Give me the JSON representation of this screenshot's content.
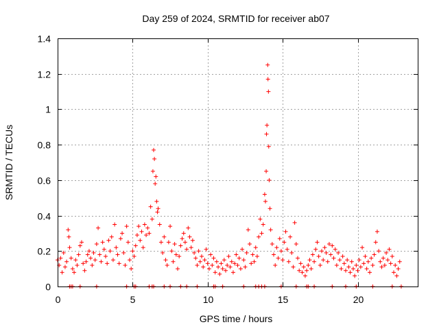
{
  "chart_data": {
    "type": "scatter",
    "title": "Day 259 of 2024, SRMTID for receiver ab07",
    "xlabel": "GPS time / hours",
    "ylabel": "SRMTID / TECUs",
    "xlim": [
      0,
      24
    ],
    "ylim": [
      0,
      1.4
    ],
    "xticks": [
      0,
      5,
      10,
      15,
      20
    ],
    "xtick_labels": [
      "0",
      "5",
      "10",
      "15",
      "20"
    ],
    "yticks": [
      0,
      0.2,
      0.4,
      0.6,
      0.8,
      1.0,
      1.2,
      1.4
    ],
    "ytick_labels": [
      "0",
      "0.2",
      "0.4",
      "0.6",
      "0.8",
      "1",
      "1.2",
      "1.4"
    ],
    "grid": true,
    "marker": "+",
    "color": "#ff0000",
    "series": [
      {
        "name": "ab07",
        "points": [
          [
            0.0,
            0.15
          ],
          [
            0.1,
            0.12
          ],
          [
            0.2,
            0.16
          ],
          [
            0.3,
            0.08
          ],
          [
            0.4,
            0.19
          ],
          [
            0.5,
            0.11
          ],
          [
            0.6,
            0.14
          ],
          [
            0.7,
            0.32
          ],
          [
            0.75,
            0.28
          ],
          [
            0.8,
            0.22
          ],
          [
            0.9,
            0.16
          ],
          [
            1.0,
            0.1
          ],
          [
            1.1,
            0.08
          ],
          [
            1.2,
            0.15
          ],
          [
            1.3,
            0.12
          ],
          [
            1.4,
            0.18
          ],
          [
            1.5,
            0.23
          ],
          [
            1.6,
            0.25
          ],
          [
            1.7,
            0.13
          ],
          [
            1.8,
            0.09
          ],
          [
            1.9,
            0.14
          ],
          [
            2.0,
            0.18
          ],
          [
            2.1,
            0.2
          ],
          [
            2.2,
            0.16
          ],
          [
            2.3,
            0.12
          ],
          [
            2.4,
            0.19
          ],
          [
            2.5,
            0.15
          ],
          [
            2.6,
            0.24
          ],
          [
            2.7,
            0.33
          ],
          [
            2.8,
            0.18
          ],
          [
            2.9,
            0.14
          ],
          [
            3.0,
            0.25
          ],
          [
            3.1,
            0.21
          ],
          [
            3.2,
            0.17
          ],
          [
            3.3,
            0.13
          ],
          [
            3.4,
            0.26
          ],
          [
            3.5,
            0.2
          ],
          [
            3.6,
            0.28
          ],
          [
            3.7,
            0.15
          ],
          [
            3.8,
            0.35
          ],
          [
            3.9,
            0.22
          ],
          [
            4.0,
            0.18
          ],
          [
            4.1,
            0.13
          ],
          [
            4.2,
            0.27
          ],
          [
            4.3,
            0.3
          ],
          [
            4.4,
            0.19
          ],
          [
            4.5,
            0.12
          ],
          [
            4.6,
            0.34
          ],
          [
            4.7,
            0.25
          ],
          [
            4.8,
            0.15
          ],
          [
            4.9,
            0.1
          ],
          [
            5.0,
            0.2
          ],
          [
            5.1,
            0.17
          ],
          [
            5.2,
            0.23
          ],
          [
            5.3,
            0.29
          ],
          [
            5.4,
            0.34
          ],
          [
            5.5,
            0.26
          ],
          [
            5.6,
            0.31
          ],
          [
            5.7,
            0.22
          ],
          [
            5.8,
            0.35
          ],
          [
            5.9,
            0.29
          ],
          [
            6.0,
            0.33
          ],
          [
            6.1,
            0.3
          ],
          [
            6.2,
            0.45
          ],
          [
            6.3,
            0.38
          ],
          [
            6.35,
            0.65
          ],
          [
            6.4,
            0.77
          ],
          [
            6.45,
            0.72
          ],
          [
            6.5,
            0.58
          ],
          [
            6.55,
            0.62
          ],
          [
            6.6,
            0.48
          ],
          [
            6.65,
            0.42
          ],
          [
            6.7,
            0.44
          ],
          [
            6.8,
            0.35
          ],
          [
            6.9,
            0.25
          ],
          [
            7.0,
            0.19
          ],
          [
            7.1,
            0.28
          ],
          [
            7.2,
            0.15
          ],
          [
            7.3,
            0.12
          ],
          [
            7.4,
            0.25
          ],
          [
            7.5,
            0.34
          ],
          [
            7.6,
            0.2
          ],
          [
            7.7,
            0.14
          ],
          [
            7.8,
            0.24
          ],
          [
            7.9,
            0.18
          ],
          [
            8.0,
            0.1
          ],
          [
            8.1,
            0.17
          ],
          [
            8.2,
            0.23
          ],
          [
            8.3,
            0.27
          ],
          [
            8.4,
            0.3
          ],
          [
            8.5,
            0.25
          ],
          [
            8.6,
            0.21
          ],
          [
            8.7,
            0.33
          ],
          [
            8.8,
            0.28
          ],
          [
            8.9,
            0.22
          ],
          [
            9.0,
            0.26
          ],
          [
            9.1,
            0.19
          ],
          [
            9.2,
            0.16
          ],
          [
            9.3,
            0.12
          ],
          [
            9.4,
            0.2
          ],
          [
            9.5,
            0.14
          ],
          [
            9.6,
            0.17
          ],
          [
            9.7,
            0.11
          ],
          [
            9.8,
            0.15
          ],
          [
            9.9,
            0.21
          ],
          [
            10.0,
            0.13
          ],
          [
            10.1,
            0.1
          ],
          [
            10.2,
            0.18
          ],
          [
            10.3,
            0.12
          ],
          [
            10.4,
            0.16
          ],
          [
            10.5,
            0.08
          ],
          [
            10.6,
            0.14
          ],
          [
            10.7,
            0.11
          ],
          [
            10.8,
            0.07
          ],
          [
            10.9,
            0.13
          ],
          [
            11.0,
            0.1
          ],
          [
            11.1,
            0.15
          ],
          [
            11.2,
            0.09
          ],
          [
            11.3,
            0.12
          ],
          [
            11.4,
            0.17
          ],
          [
            11.5,
            0.11
          ],
          [
            11.6,
            0.14
          ],
          [
            11.7,
            0.08
          ],
          [
            11.8,
            0.13
          ],
          [
            11.9,
            0.18
          ],
          [
            12.0,
            0.12
          ],
          [
            12.1,
            0.16
          ],
          [
            12.2,
            0.1
          ],
          [
            12.3,
            0.21
          ],
          [
            12.4,
            0.15
          ],
          [
            12.5,
            0.11
          ],
          [
            12.6,
            0.19
          ],
          [
            12.7,
            0.32
          ],
          [
            12.8,
            0.24
          ],
          [
            12.9,
            0.13
          ],
          [
            13.0,
            0.18
          ],
          [
            13.1,
            0.14
          ],
          [
            13.2,
            0.22
          ],
          [
            13.3,
            0.17
          ],
          [
            13.4,
            0.28
          ],
          [
            13.5,
            0.38
          ],
          [
            13.6,
            0.3
          ],
          [
            13.7,
            0.35
          ],
          [
            13.8,
            0.52
          ],
          [
            13.85,
            0.48
          ],
          [
            13.9,
            0.65
          ],
          [
            13.92,
            0.86
          ],
          [
            13.95,
            0.91
          ],
          [
            14.0,
            1.25
          ],
          [
            14.02,
            1.17
          ],
          [
            14.05,
            1.1
          ],
          [
            14.07,
            0.79
          ],
          [
            14.1,
            0.6
          ],
          [
            14.15,
            0.44
          ],
          [
            14.2,
            0.32
          ],
          [
            14.3,
            0.24
          ],
          [
            14.4,
            0.18
          ],
          [
            14.5,
            0.12
          ],
          [
            14.6,
            0.22
          ],
          [
            14.7,
            0.16
          ],
          [
            14.8,
            0.27
          ],
          [
            14.9,
            0.2
          ],
          [
            15.0,
            0.15
          ],
          [
            15.1,
            0.25
          ],
          [
            15.2,
            0.31
          ],
          [
            15.3,
            0.21
          ],
          [
            15.4,
            0.14
          ],
          [
            15.5,
            0.28
          ],
          [
            15.6,
            0.19
          ],
          [
            15.7,
            0.11
          ],
          [
            15.8,
            0.36
          ],
          [
            15.9,
            0.24
          ],
          [
            16.0,
            0.16
          ],
          [
            16.1,
            0.09
          ],
          [
            16.2,
            0.13
          ],
          [
            16.3,
            0.08
          ],
          [
            16.4,
            0.11
          ],
          [
            16.5,
            0.06
          ],
          [
            16.6,
            0.09
          ],
          [
            16.7,
            0.12
          ],
          [
            16.8,
            0.15
          ],
          [
            16.9,
            0.1
          ],
          [
            17.0,
            0.18
          ],
          [
            17.1,
            0.14
          ],
          [
            17.2,
            0.21
          ],
          [
            17.3,
            0.25
          ],
          [
            17.4,
            0.17
          ],
          [
            17.5,
            0.12
          ],
          [
            17.6,
            0.2
          ],
          [
            17.7,
            0.15
          ],
          [
            17.8,
            0.22
          ],
          [
            17.9,
            0.19
          ],
          [
            18.0,
            0.14
          ],
          [
            18.1,
            0.24
          ],
          [
            18.2,
            0.18
          ],
          [
            18.3,
            0.23
          ],
          [
            18.4,
            0.16
          ],
          [
            18.5,
            0.21
          ],
          [
            18.6,
            0.12
          ],
          [
            18.7,
            0.19
          ],
          [
            18.8,
            0.15
          ],
          [
            18.9,
            0.1
          ],
          [
            19.0,
            0.17
          ],
          [
            19.1,
            0.13
          ],
          [
            19.2,
            0.09
          ],
          [
            19.3,
            0.15
          ],
          [
            19.4,
            0.11
          ],
          [
            19.5,
            0.08
          ],
          [
            19.6,
            0.14
          ],
          [
            19.7,
            0.1
          ],
          [
            19.8,
            0.06
          ],
          [
            19.9,
            0.12
          ],
          [
            20.0,
            0.09
          ],
          [
            20.1,
            0.15
          ],
          [
            20.2,
            0.11
          ],
          [
            20.3,
            0.22
          ],
          [
            20.4,
            0.13
          ],
          [
            20.5,
            0.17
          ],
          [
            20.6,
            0.1
          ],
          [
            20.7,
            0.14
          ],
          [
            20.8,
            0.08
          ],
          [
            20.9,
            0.16
          ],
          [
            21.0,
            0.12
          ],
          [
            21.1,
            0.18
          ],
          [
            21.2,
            0.25
          ],
          [
            21.3,
            0.31
          ],
          [
            21.4,
            0.2
          ],
          [
            21.5,
            0.14
          ],
          [
            21.6,
            0.11
          ],
          [
            21.7,
            0.16
          ],
          [
            21.8,
            0.12
          ],
          [
            21.9,
            0.19
          ],
          [
            22.0,
            0.15
          ],
          [
            22.1,
            0.21
          ],
          [
            22.2,
            0.13
          ],
          [
            22.3,
            0.17
          ],
          [
            22.4,
            0.08
          ],
          [
            22.5,
            0.12
          ],
          [
            22.6,
            0.06
          ],
          [
            22.7,
            0.1
          ],
          [
            22.8,
            0.14
          ]
        ]
      }
    ],
    "zero_markers_x": [
      0.8,
      0.9,
      1.0,
      1.5,
      2.6,
      4.6,
      5.1,
      5.2,
      6.1,
      6.3,
      6.4,
      7.1,
      7.5,
      8.2,
      8.6,
      9.3,
      10.4,
      10.5,
      11.0,
      12.4,
      13.2,
      13.4,
      13.6,
      13.8,
      14.9,
      15.9,
      16.6,
      16.7,
      17.1,
      18.3,
      19.2,
      19.9,
      21.0,
      22.3,
      22.9
    ]
  }
}
